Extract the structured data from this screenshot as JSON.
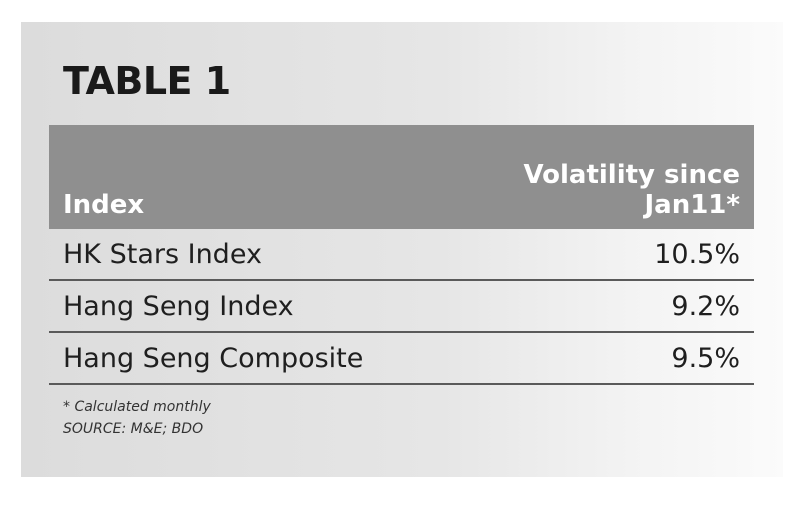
{
  "title": "TABLE 1",
  "table": {
    "headers": {
      "index": "Index",
      "volatility_line1": "Volatility since",
      "volatility_line2": "Jan11*"
    },
    "rows": [
      {
        "index": "HK Stars Index",
        "volatility": "10.5%"
      },
      {
        "index": "Hang Seng Index",
        "volatility": "9.2%"
      },
      {
        "index": "Hang Seng Composite",
        "volatility": "9.5%"
      }
    ]
  },
  "footnotes": {
    "note": "* Calculated monthly",
    "source": "SOURCE: M&E; BDO"
  },
  "colors": {
    "header_bg": "#8f8f8f",
    "header_text": "#ffffff",
    "panel_bg": "#e2e2e2",
    "row_rule": "#5a5a5a"
  }
}
